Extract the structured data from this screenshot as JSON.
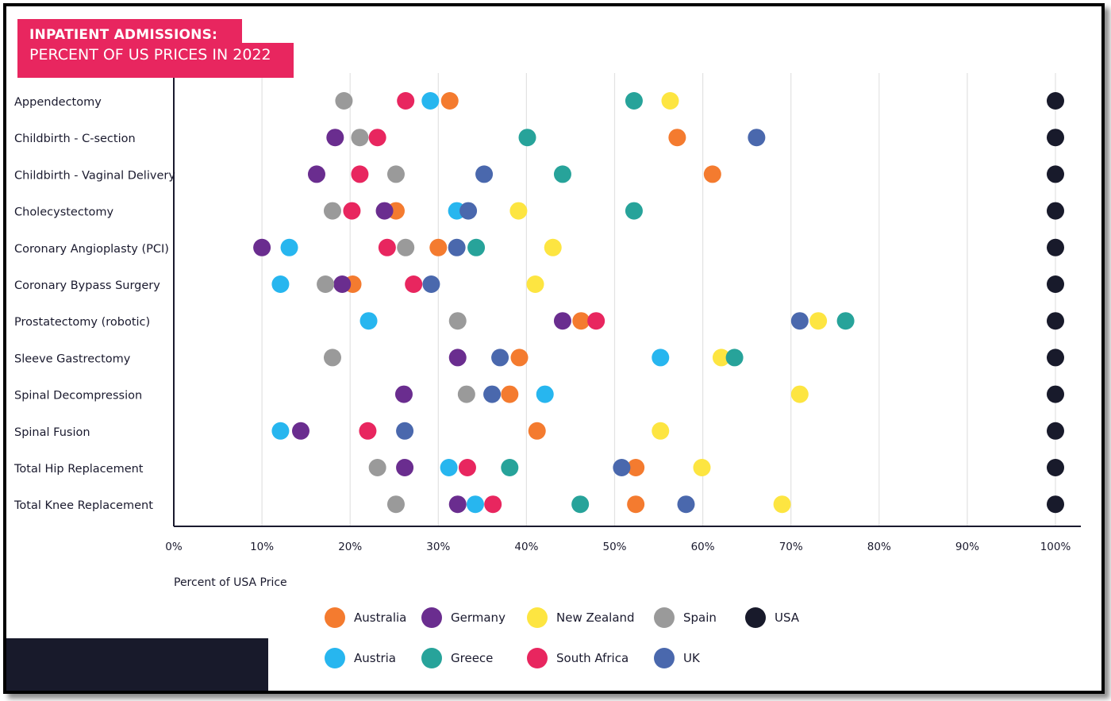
{
  "title": {
    "line1": "INPATIENT ADMISSIONS:",
    "line2": "PERCENT OF US PRICES IN 2022"
  },
  "chart_data": {
    "type": "scatter",
    "title": "INPATIENT ADMISSIONS: PERCENT OF US PRICES IN 2022",
    "xlabel": "Percent of USA Price",
    "ylabel": "",
    "xlim": [
      0,
      100
    ],
    "x_ticks": [
      "0%",
      "10%",
      "20%",
      "30%",
      "40%",
      "50%",
      "60%",
      "70%",
      "80%",
      "90%",
      "100%"
    ],
    "grid": true,
    "legend_position": "bottom",
    "categories": [
      "Appendectomy",
      "Childbirth - C-section",
      "Childbirth - Vaginal Delivery",
      "Cholecystectomy",
      "Coronary Angioplasty (PCI)",
      "Coronary Bypass Surgery",
      "Prostatectomy (robotic)",
      "Sleeve Gastrectomy",
      "Spinal Decompression",
      "Spinal Fusion",
      "Total Hip Replacement",
      "Total Knee Replacement"
    ],
    "series": [
      {
        "name": "Australia",
        "color": "#f47b2f",
        "values": [
          31.3,
          57.1,
          61.1,
          25.2,
          30.0,
          20.3,
          46.2,
          39.2,
          38.1,
          41.2,
          52.4,
          52.4
        ]
      },
      {
        "name": "Germany",
        "color": "#6a2d8f",
        "values": [
          null,
          18.3,
          16.2,
          23.9,
          10.0,
          19.1,
          44.1,
          32.2,
          26.1,
          14.4,
          26.2,
          32.2
        ]
      },
      {
        "name": "New Zealand",
        "color": "#fde541",
        "values": [
          56.3,
          null,
          null,
          39.1,
          43.0,
          41.0,
          73.1,
          62.1,
          71.0,
          55.2,
          59.9,
          69.0
        ]
      },
      {
        "name": "Spain",
        "color": "#9a9a9a",
        "values": [
          19.3,
          21.1,
          25.2,
          18.0,
          26.3,
          17.2,
          32.2,
          18.0,
          33.2,
          null,
          23.1,
          25.2
        ]
      },
      {
        "name": "USA",
        "color": "#181a2b",
        "values": [
          100,
          100,
          100,
          100,
          100,
          100,
          100,
          100,
          100,
          100,
          100,
          100
        ]
      },
      {
        "name": "Austria",
        "color": "#27b6ef",
        "values": [
          29.1,
          null,
          null,
          32.1,
          13.1,
          12.1,
          22.1,
          55.2,
          42.1,
          12.1,
          31.2,
          34.2
        ]
      },
      {
        "name": "Greece",
        "color": "#27a39a",
        "values": [
          52.2,
          40.1,
          44.1,
          52.2,
          34.3,
          null,
          76.2,
          63.6,
          null,
          null,
          38.1,
          46.1
        ]
      },
      {
        "name": "South Africa",
        "color": "#e8265f",
        "values": [
          26.3,
          23.1,
          21.1,
          20.2,
          24.2,
          27.2,
          47.9,
          null,
          null,
          22.0,
          33.3,
          36.2
        ]
      },
      {
        "name": "UK",
        "color": "#4a68ad",
        "values": [
          null,
          66.1,
          35.2,
          33.4,
          32.1,
          29.2,
          71.0,
          37.0,
          36.1,
          26.2,
          50.8,
          58.1
        ]
      }
    ]
  },
  "legend": {
    "rows": [
      [
        "Australia",
        "Germany",
        "New Zealand",
        "Spain",
        "USA"
      ],
      [
        "Austria",
        "Greece",
        "South Africa",
        "UK"
      ]
    ]
  }
}
